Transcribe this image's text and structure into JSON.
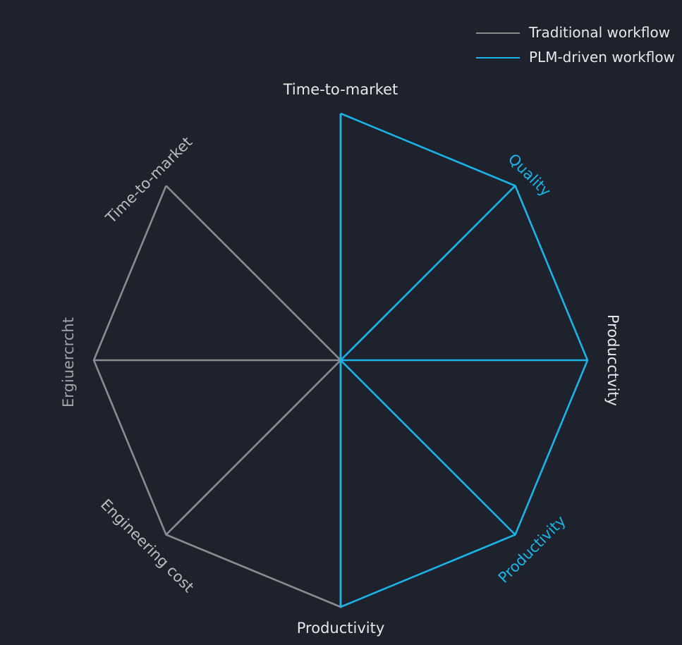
{
  "chart_data": {
    "type": "radar",
    "axes": [
      {
        "label": "Time-to-market",
        "color": "#e6e8ec"
      },
      {
        "label": "Quality",
        "color": "#1ab4e8"
      },
      {
        "label": "Producctvity",
        "color": "#e6e8ec"
      },
      {
        "label": "Productivity",
        "color": "#1ab4e8"
      },
      {
        "label": "Productivity",
        "color": "#e6e8ec"
      },
      {
        "label": "Engineering cost",
        "color": "#b9bcc2"
      },
      {
        "label": "Ergiuercrcht",
        "color": "#9fa3aa"
      },
      {
        "label": "Time-to-market",
        "color": "#b9bcc2"
      }
    ],
    "series": [
      {
        "name": "Traditional workflow",
        "color": "#8a8c91",
        "axes": [
          0,
          4,
          5,
          6,
          7
        ],
        "values": [
          1,
          1,
          1,
          1,
          1
        ]
      },
      {
        "name": "PLM-driven workflow",
        "color": "#1ab4e8",
        "axes": [
          0,
          1,
          2,
          3,
          4
        ],
        "values": [
          1,
          1,
          1,
          1,
          1
        ]
      }
    ],
    "range": [
      0,
      1
    ],
    "legend_position": "top-right"
  }
}
